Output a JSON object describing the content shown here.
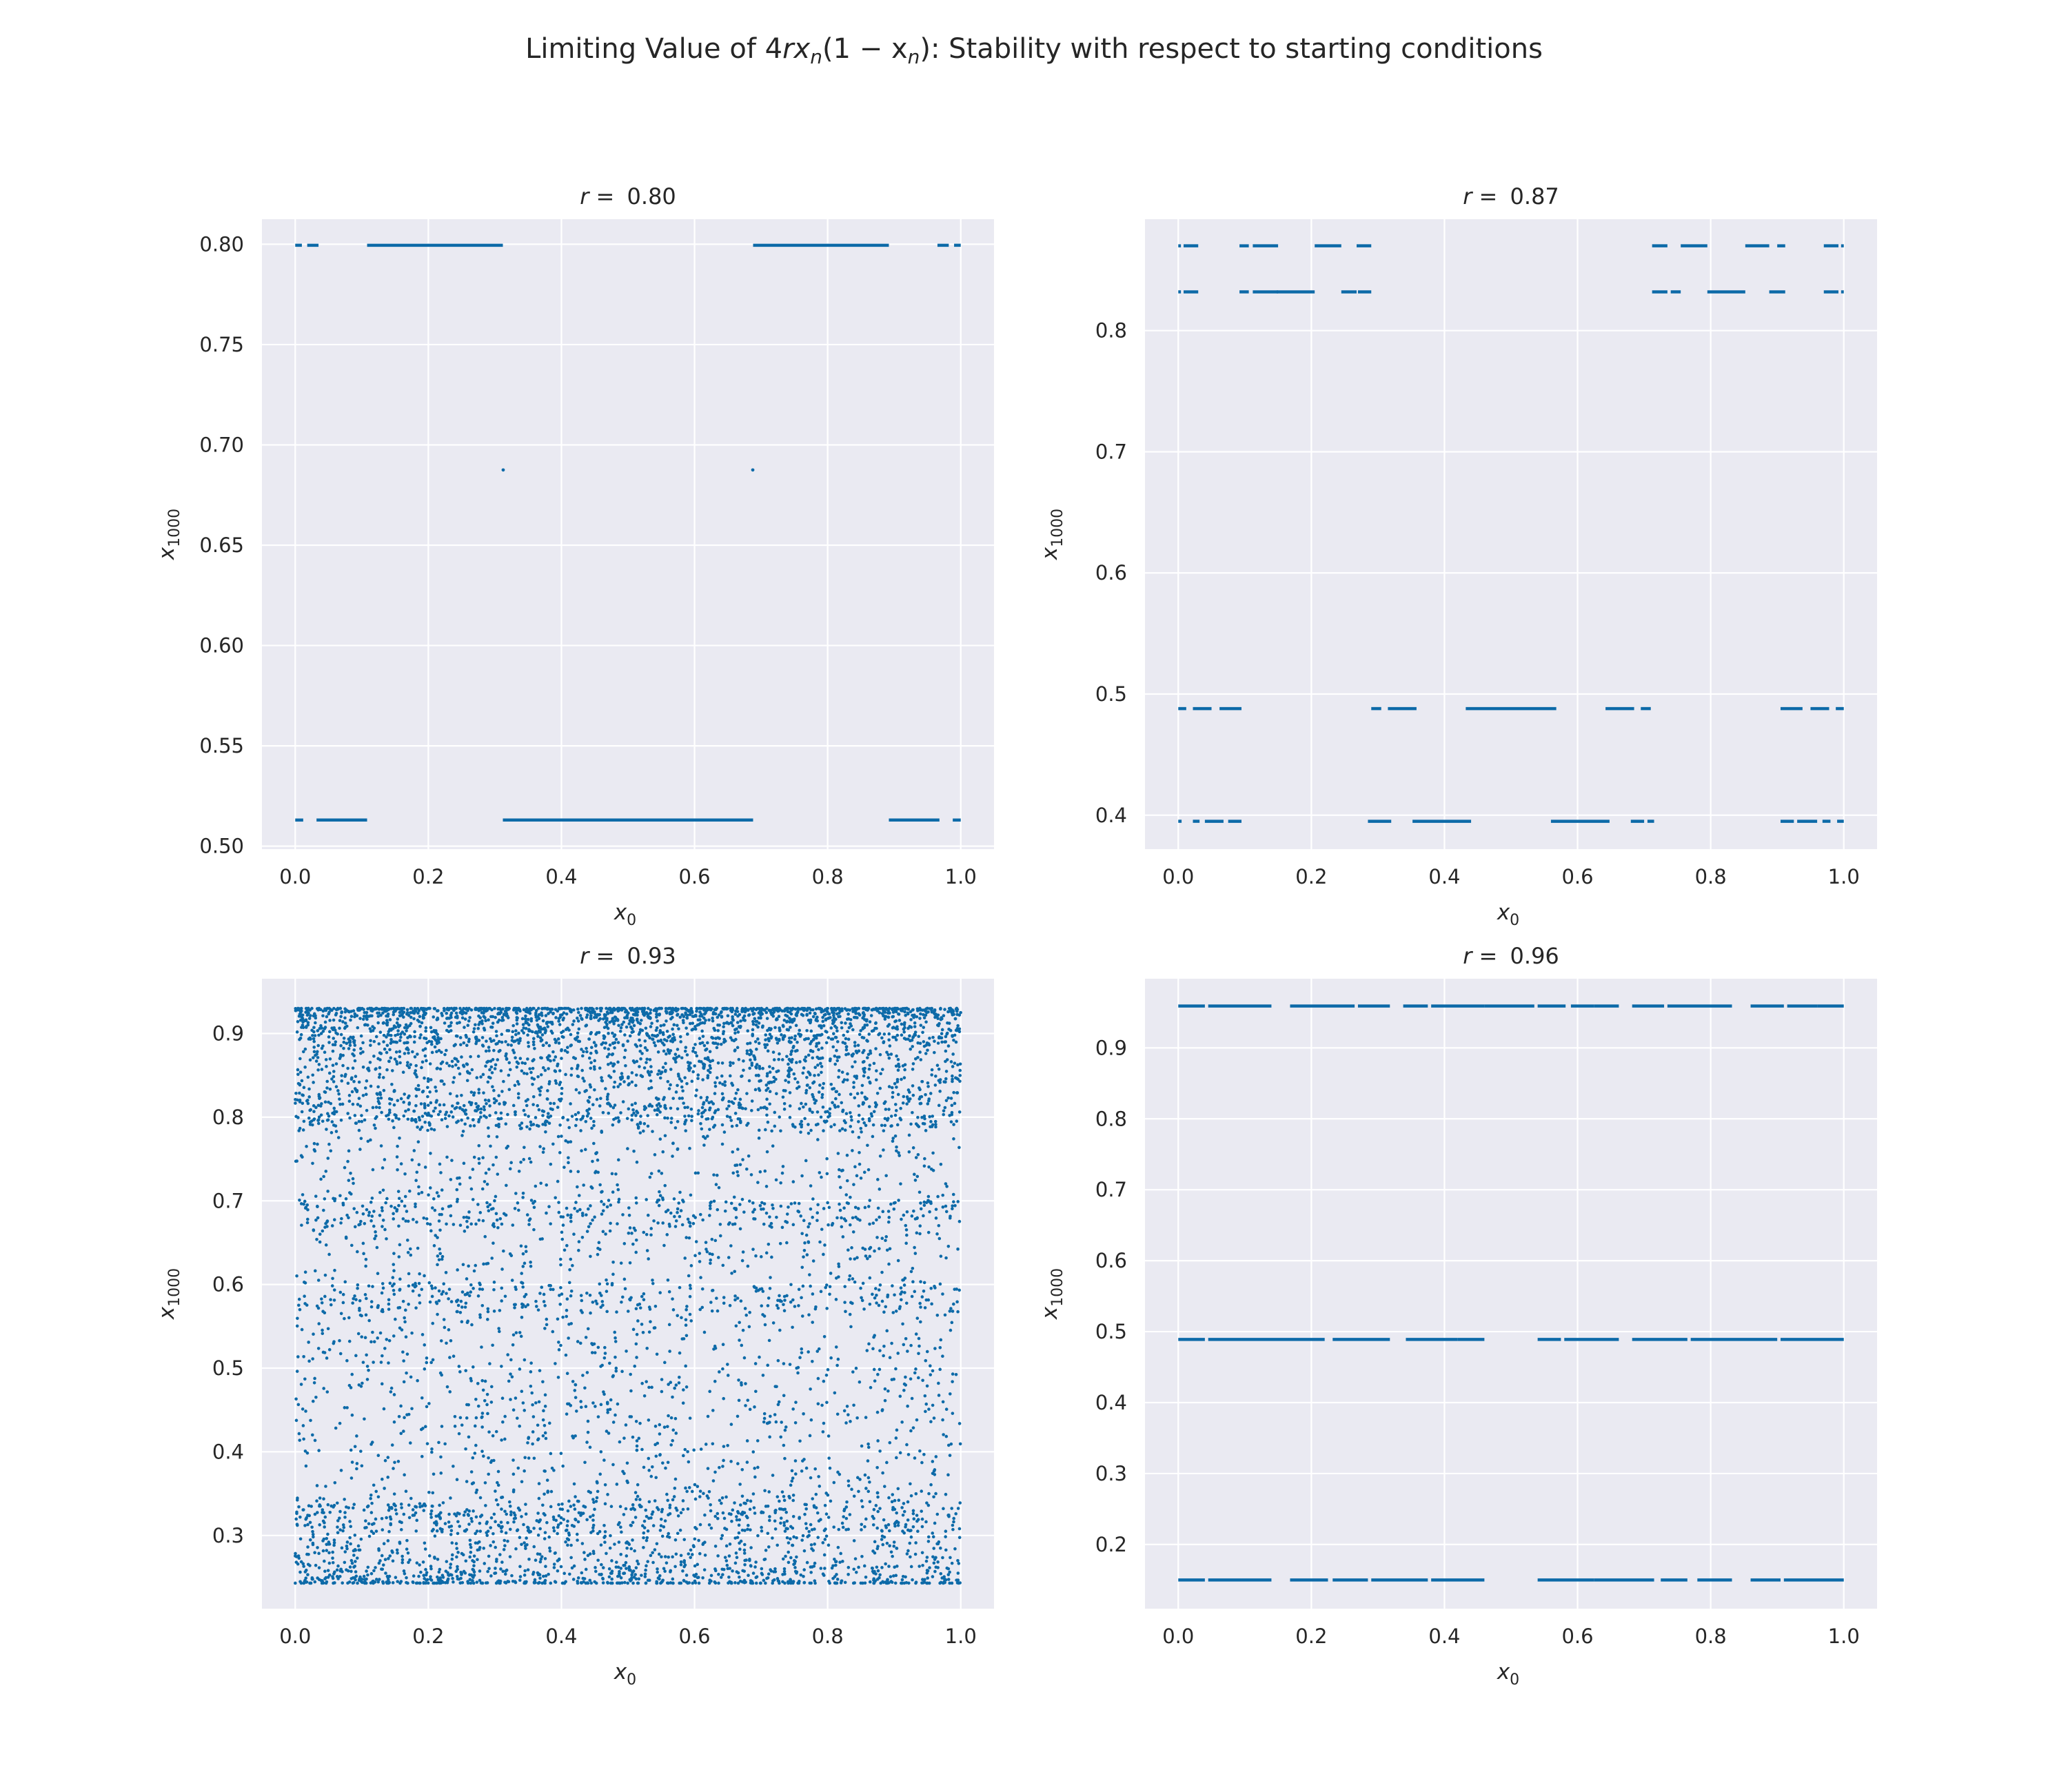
{
  "figure": {
    "title_prefix": "Limiting Value of 4",
    "title_math": "rx",
    "title_sub1": "n",
    "title_mid": "(1 − x",
    "title_sub2": "n",
    "title_suffix": "): Stability with respect to starting conditions"
  },
  "colors": {
    "point": "#1f77b4",
    "point_dark": "#0d6aa8",
    "panel_bg": "#eaeaf2",
    "grid": "#ffffff",
    "text": "#262626"
  },
  "chart_data": [
    {
      "type": "scatter",
      "title_prefix": "r = ",
      "title_value": "0.80",
      "xlabel": "x",
      "xlabel_sub": "0",
      "ylabel": "x",
      "ylabel_sub": "1000",
      "xlim": [
        -0.05,
        1.05
      ],
      "ylim": [
        0.4985,
        0.8125
      ],
      "xticks": [
        0.0,
        0.2,
        0.4,
        0.6,
        0.8,
        1.0
      ],
      "xtick_labels": [
        "0.0",
        "0.2",
        "0.4",
        "0.6",
        "0.8",
        "1.0"
      ],
      "yticks": [
        0.5,
        0.55,
        0.6,
        0.65,
        0.7,
        0.75,
        0.8
      ],
      "ytick_labels": [
        "0.50",
        "0.55",
        "0.60",
        "0.65",
        "0.70",
        "0.75",
        "0.80"
      ],
      "grid": true,
      "levels": [
        {
          "y": 0.7995,
          "segments": [
            [
              0.0,
              0.01
            ],
            [
              0.018,
              0.035
            ],
            [
              0.108,
              0.312
            ],
            [
              0.688,
              0.892
            ],
            [
              0.965,
              0.982
            ],
            [
              0.99,
              1.0
            ]
          ]
        },
        {
          "y": 0.513,
          "segments": [
            [
              0.0,
              0.012
            ],
            [
              0.032,
              0.108
            ],
            [
              0.312,
              0.688
            ],
            [
              0.892,
              0.968
            ],
            [
              0.988,
              1.0
            ]
          ]
        }
      ],
      "points": [
        [
          0.3125,
          0.6875
        ],
        [
          0.6875,
          0.6875
        ]
      ]
    },
    {
      "type": "scatter",
      "title_prefix": "r = ",
      "title_value": "0.87",
      "xlabel": "x",
      "xlabel_sub": "0",
      "ylabel": "x",
      "ylabel_sub": "1000",
      "xlim": [
        -0.05,
        1.05
      ],
      "ylim": [
        0.372,
        0.892
      ],
      "xticks": [
        0.0,
        0.2,
        0.4,
        0.6,
        0.8,
        1.0
      ],
      "xtick_labels": [
        "0.0",
        "0.2",
        "0.4",
        "0.6",
        "0.8",
        "1.0"
      ],
      "yticks": [
        0.4,
        0.5,
        0.6,
        0.7,
        0.8
      ],
      "ytick_labels": [
        "0.4",
        "0.5",
        "0.6",
        "0.7",
        "0.8"
      ],
      "grid": true,
      "levels": [
        {
          "y": 0.87,
          "segments": [
            [
              0.0,
              0.004
            ],
            [
              0.008,
              0.03
            ],
            [
              0.092,
              0.106
            ],
            [
              0.112,
              0.15
            ],
            [
              0.205,
              0.245
            ],
            [
              0.268,
              0.29
            ],
            [
              0.712,
              0.735
            ],
            [
              0.755,
              0.795
            ],
            [
              0.852,
              0.888
            ],
            [
              0.9,
              0.912
            ],
            [
              0.97,
              0.992
            ],
            [
              0.996,
              1.0
            ]
          ]
        },
        {
          "y": 0.832,
          "segments": [
            [
              0.0,
              0.004
            ],
            [
              0.008,
              0.03
            ],
            [
              0.092,
              0.106
            ],
            [
              0.112,
              0.15
            ],
            [
              0.148,
              0.205
            ],
            [
              0.245,
              0.268
            ],
            [
              0.27,
              0.29
            ],
            [
              0.712,
              0.735
            ],
            [
              0.74,
              0.755
            ],
            [
              0.795,
              0.852
            ],
            [
              0.888,
              0.912
            ],
            [
              0.97,
              0.992
            ],
            [
              0.996,
              1.0
            ]
          ]
        },
        {
          "y": 0.488,
          "segments": [
            [
              0.0,
              0.012
            ],
            [
              0.022,
              0.05
            ],
            [
              0.062,
              0.095
            ],
            [
              0.29,
              0.305
            ],
            [
              0.315,
              0.358
            ],
            [
              0.432,
              0.568
            ],
            [
              0.642,
              0.685
            ],
            [
              0.695,
              0.71
            ],
            [
              0.905,
              0.938
            ],
            [
              0.95,
              0.978
            ],
            [
              0.988,
              1.0
            ]
          ]
        },
        {
          "y": 0.395,
          "segments": [
            [
              0.0,
              0.005
            ],
            [
              0.022,
              0.032
            ],
            [
              0.04,
              0.068
            ],
            [
              0.075,
              0.095
            ],
            [
              0.285,
              0.32
            ],
            [
              0.352,
              0.44
            ],
            [
              0.56,
              0.648
            ],
            [
              0.68,
              0.7
            ],
            [
              0.705,
              0.715
            ],
            [
              0.905,
              0.925
            ],
            [
              0.93,
              0.96
            ],
            [
              0.968,
              0.98
            ],
            [
              0.99,
              1.0
            ]
          ]
        }
      ],
      "points": []
    },
    {
      "type": "scatter",
      "title_prefix": "r = ",
      "title_value": "0.93",
      "xlabel": "x",
      "xlabel_sub": "0",
      "ylabel": "x",
      "ylabel_sub": "1000",
      "xlim": [
        -0.05,
        1.05
      ],
      "ylim": [
        0.2125,
        0.9655
      ],
      "xticks": [
        0.0,
        0.2,
        0.4,
        0.6,
        0.8,
        1.0
      ],
      "xtick_labels": [
        "0.0",
        "0.2",
        "0.4",
        "0.6",
        "0.8",
        "1.0"
      ],
      "yticks": [
        0.3,
        0.4,
        0.5,
        0.6,
        0.7,
        0.8,
        0.9
      ],
      "ytick_labels": [
        "0.3",
        "0.4",
        "0.5",
        "0.6",
        "0.7",
        "0.8",
        "0.9"
      ],
      "grid": true,
      "chaotic": {
        "count": 7000,
        "x_range": [
          0.0,
          1.0
        ],
        "y_range": [
          0.243,
          0.93
        ],
        "dense_bands": [
          0.93,
          0.905,
          0.8,
          0.685,
          0.585,
          0.32,
          0.245
        ]
      },
      "levels": [],
      "points": []
    },
    {
      "type": "scatter",
      "title_prefix": "r = ",
      "title_value": "0.96",
      "xlabel": "x",
      "xlabel_sub": "0",
      "ylabel": "x",
      "ylabel_sub": "1000",
      "xlim": [
        -0.05,
        1.05
      ],
      "ylim": [
        0.1095,
        0.9975
      ],
      "xticks": [
        0.0,
        0.2,
        0.4,
        0.6,
        0.8,
        1.0
      ],
      "xtick_labels": [
        "0.0",
        "0.2",
        "0.4",
        "0.6",
        "0.8",
        "1.0"
      ],
      "yticks": [
        0.2,
        0.3,
        0.4,
        0.5,
        0.6,
        0.7,
        0.8,
        0.9
      ],
      "ytick_labels": [
        "0.2",
        "0.3",
        "0.4",
        "0.5",
        "0.6",
        "0.7",
        "0.8",
        "0.9"
      ],
      "grid": true,
      "levels": [
        {
          "y": 0.959,
          "segments": [
            [
              0.0,
              0.04
            ],
            [
              0.045,
              0.14
            ],
            [
              0.168,
              0.265
            ],
            [
              0.27,
              0.318
            ],
            [
              0.338,
              0.375
            ],
            [
              0.38,
              0.46
            ],
            [
              0.46,
              0.535
            ],
            [
              0.54,
              0.582
            ],
            [
              0.59,
              0.625
            ],
            [
              0.625,
              0.662
            ],
            [
              0.682,
              0.73
            ],
            [
              0.735,
              0.832
            ],
            [
              0.86,
              0.91
            ],
            [
              0.915,
              0.96
            ],
            [
              0.96,
              1.0
            ]
          ]
        },
        {
          "y": 0.489,
          "segments": [
            [
              0.0,
              0.04
            ],
            [
              0.045,
              0.095
            ],
            [
              0.095,
              0.22
            ],
            [
              0.232,
              0.318
            ],
            [
              0.342,
              0.42
            ],
            [
              0.42,
              0.46
            ],
            [
              0.54,
              0.575
            ],
            [
              0.58,
              0.662
            ],
            [
              0.682,
              0.765
            ],
            [
              0.77,
              0.9
            ],
            [
              0.905,
              1.0
            ]
          ]
        },
        {
          "y": 0.15,
          "segments": [
            [
              0.0,
              0.04
            ],
            [
              0.045,
              0.095
            ],
            [
              0.095,
              0.14
            ],
            [
              0.168,
              0.225
            ],
            [
              0.232,
              0.285
            ],
            [
              0.29,
              0.375
            ],
            [
              0.38,
              0.46
            ],
            [
              0.54,
              0.625
            ],
            [
              0.625,
              0.715
            ],
            [
              0.725,
              0.765
            ],
            [
              0.78,
              0.832
            ],
            [
              0.86,
              0.905
            ],
            [
              0.91,
              1.0
            ]
          ]
        }
      ],
      "points": []
    }
  ]
}
